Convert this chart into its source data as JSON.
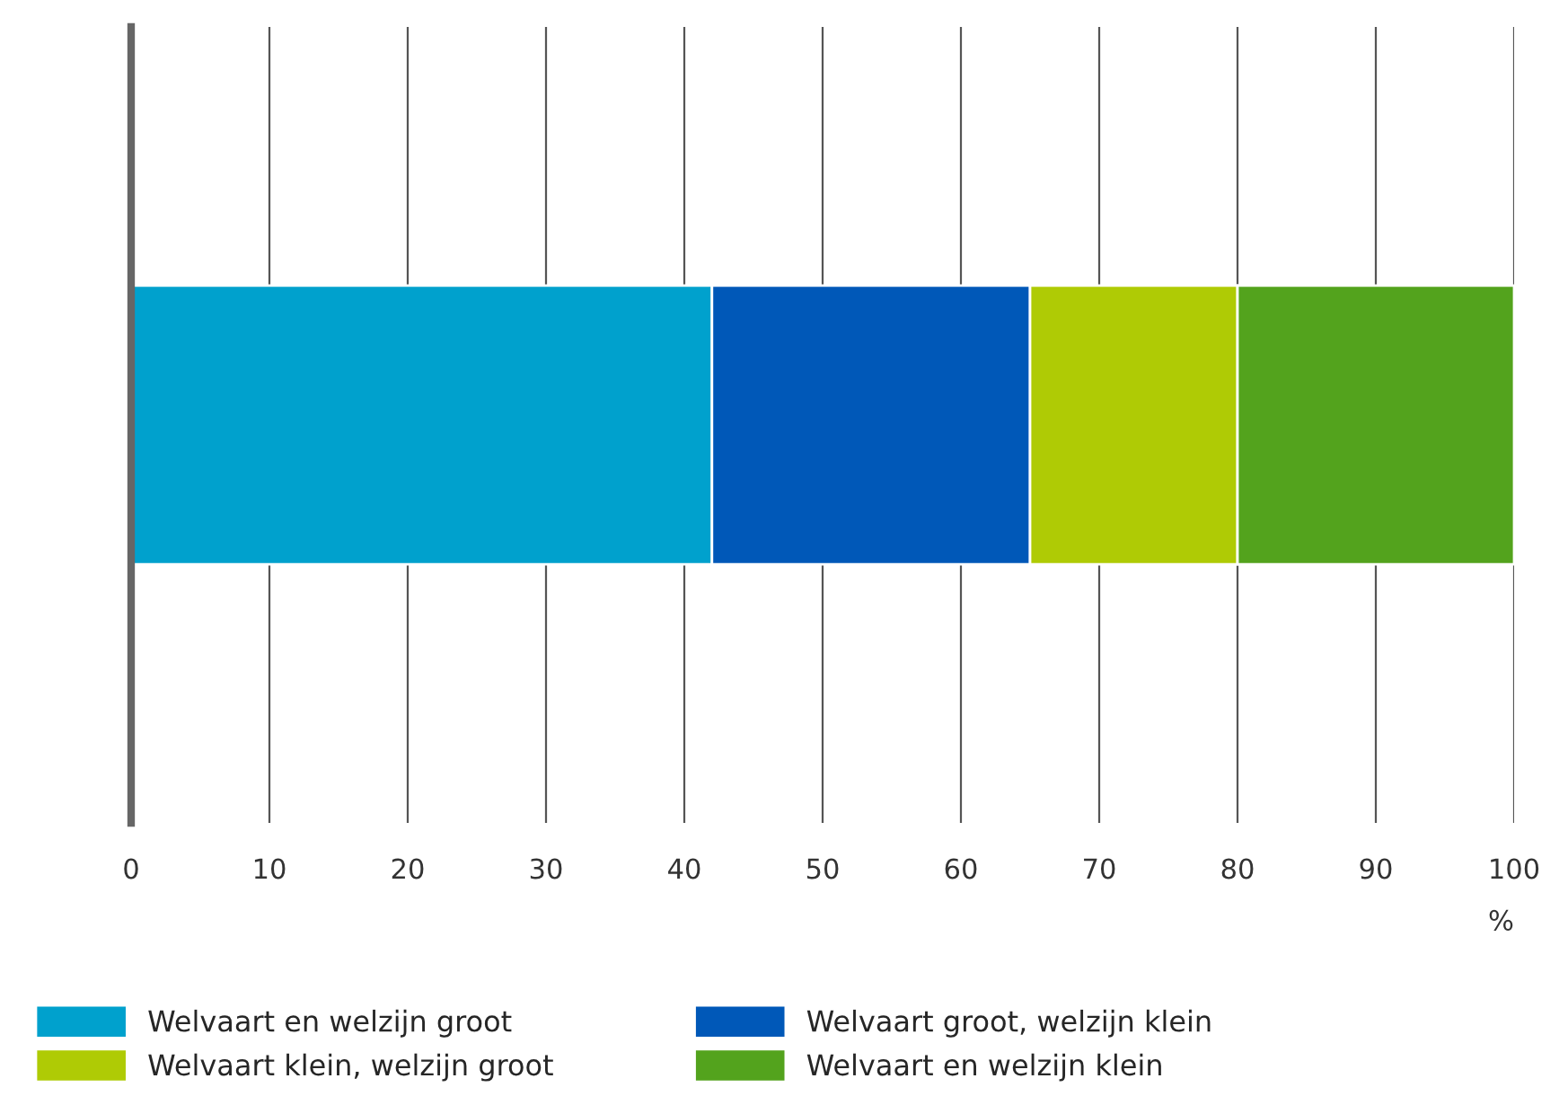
{
  "chart_data": {
    "type": "bar",
    "orientation": "horizontal",
    "stacked": true,
    "categories": [
      null
    ],
    "xlabel": "%",
    "xlim": [
      0,
      100
    ],
    "xticks": [
      0,
      10,
      20,
      30,
      40,
      50,
      60,
      70,
      80,
      90,
      100
    ],
    "grid": "x",
    "legend": "bottom",
    "series": [
      {
        "name": "Welvaart en welzijn groot",
        "color": "#00a1cd",
        "values": [
          42
        ]
      },
      {
        "name": "Welvaart groot, welzijn klein",
        "color": "#0058b8",
        "values": [
          23
        ]
      },
      {
        "name": "Welvaart klein, welzijn groot",
        "color": "#afcb05",
        "values": [
          15
        ]
      },
      {
        "name": "Welvaart en welzijn klein",
        "color": "#53a31d",
        "values": [
          20
        ]
      }
    ]
  }
}
